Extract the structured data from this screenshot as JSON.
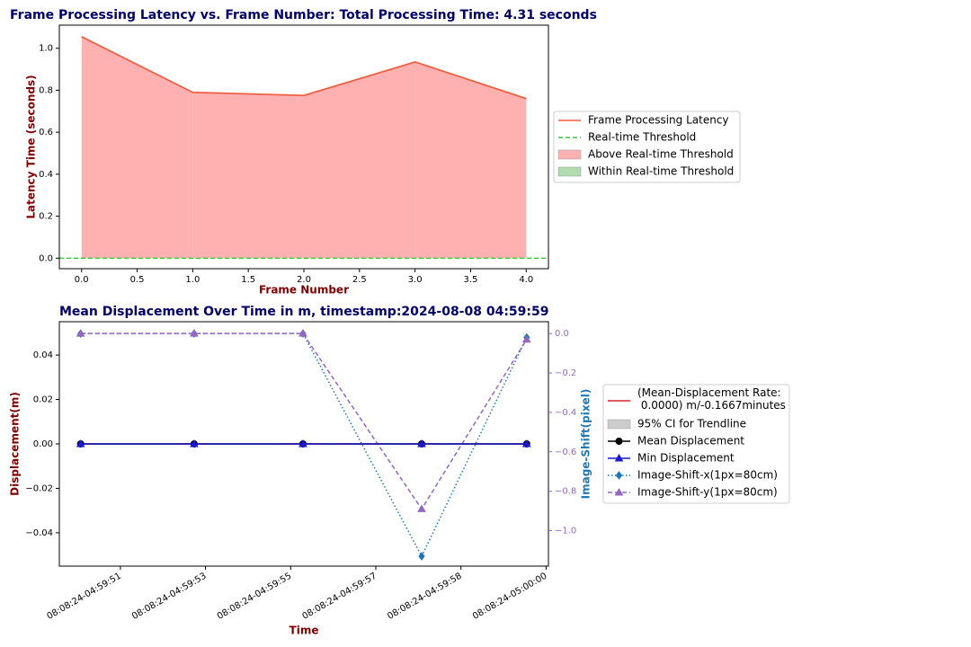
{
  "chart_data": [
    {
      "type": "area",
      "title": "Frame Processing Latency vs. Frame Number: Total Processing Time: 4.31 seconds",
      "xlabel": "Frame Number",
      "ylabel": "Latency Time (seconds)",
      "x": [
        0,
        1,
        2,
        3,
        4
      ],
      "series": [
        {
          "name": "Frame Processing Latency",
          "color": "#ee6040",
          "values": [
            1.055,
            0.79,
            0.775,
            0.935,
            0.76
          ]
        }
      ],
      "threshold": {
        "name": "Real-time Threshold",
        "value": 0,
        "color": "#33cc33"
      },
      "fills": [
        {
          "name": "Above Real-time Threshold",
          "color": "#ffb0b0"
        },
        {
          "name": "Within Real-time Threshold",
          "color": "#b0dcb0"
        }
      ],
      "xlim": [
        -0.2,
        4.2
      ],
      "xticks": [
        {
          "value": 0,
          "label": "0.0"
        },
        0.5,
        {
          "value": 1,
          "label": "1.0"
        },
        1.5,
        {
          "value": 2,
          "label": "2.0"
        },
        2.5,
        {
          "value": 3,
          "label": "3.0"
        },
        3.5,
        {
          "value": 4,
          "label": "4.0"
        }
      ],
      "ylim": [
        -0.05,
        1.11
      ],
      "yticks": [
        {
          "value": 0,
          "label": "0.0"
        },
        0.2,
        0.4,
        0.6,
        0.8,
        {
          "value": 1,
          "label": "1.0"
        }
      ]
    },
    {
      "type": "line",
      "title": "Mean Displacement Over Time in m, timestamp:2024-08-08 04:59:59",
      "xlabel": "Time",
      "ylabel": "Displacement(m)",
      "y2label": "Image-Shift(pixel)",
      "x": [
        50.36,
        52.76,
        55.06,
        57.57,
        59.79
      ],
      "ci": {
        "name": "95% CI for Trendline",
        "color": "#cccccc"
      },
      "series": [
        {
          "name": "(Mean-Displacement Rate:\n 0.0000) m/-0.1667minutes",
          "color": "#d62728",
          "values": [
            0,
            0,
            0,
            0,
            0
          ],
          "marker": "none",
          "dash": "solid"
        },
        {
          "name": "Mean Displacement",
          "color": "#000000",
          "values": [
            0,
            0,
            0,
            0,
            0
          ],
          "marker": "circle",
          "dash": "solid"
        },
        {
          "name": "Min Displacement",
          "color": "#1a1acc",
          "values": [
            0,
            0,
            0,
            0,
            0
          ],
          "marker": "triangle",
          "dash": "solid"
        },
        {
          "name": "Image-Shift-x(1px=80cm)",
          "color": "#1f77b4",
          "values": [
            0,
            0,
            0,
            -1.13,
            -0.02
          ],
          "marker": "diamond",
          "dash": "dotted",
          "axis": "y2"
        },
        {
          "name": "Image-Shift-y(1px=80cm)",
          "color": "#9467bd",
          "values": [
            0,
            0,
            0,
            -0.89,
            -0.03
          ],
          "marker": "triangle",
          "dash": "dashed",
          "axis": "y2"
        }
      ],
      "xlim": [
        49.91,
        60.25
      ],
      "xticks": [
        {
          "value": 51.2,
          "label": "08:08:24-04:59:51"
        },
        {
          "value": 53.0,
          "label": "08:08:24-04:59:53"
        },
        {
          "value": 54.8,
          "label": "08:08:24-04:59:55"
        },
        {
          "value": 56.6,
          "label": "08:08:24-04:59:57"
        },
        {
          "value": 58.4,
          "label": "08:08:24-04:59:58"
        },
        {
          "value": 60.2,
          "label": "08:08:24-05:00:00"
        }
      ],
      "ylim": [
        -0.055,
        0.055
      ],
      "yticks": [
        {
          "value": -0.04,
          "label": "−0.04"
        },
        {
          "value": -0.02,
          "label": "−0.02"
        },
        {
          "value": 0,
          "label": "0.00"
        },
        0.02,
        0.04
      ],
      "y2lim": [
        -1.18,
        0.06
      ],
      "y2ticks": [
        {
          "value": 0,
          "label": "0.0"
        },
        {
          "value": -0.2,
          "label": "−0.2"
        },
        {
          "value": -0.4,
          "label": "−0.4"
        },
        {
          "value": -0.6,
          "label": "−0.6"
        },
        {
          "value": -0.8,
          "label": "−0.8"
        },
        {
          "value": -1,
          "label": "−1.0"
        }
      ]
    }
  ]
}
